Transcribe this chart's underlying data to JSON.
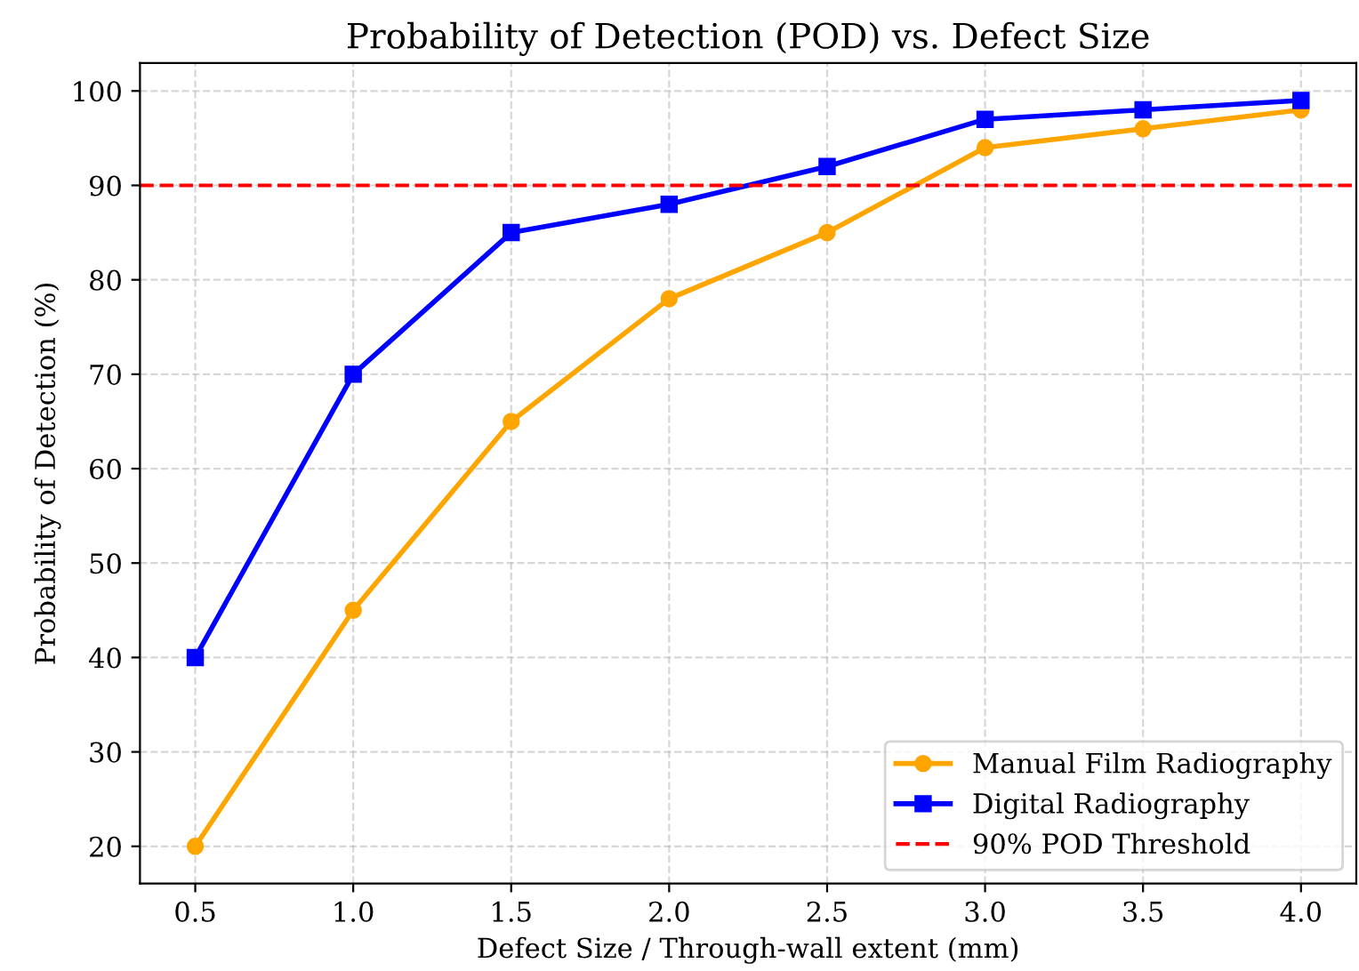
{
  "chart_data": {
    "type": "line",
    "title": "Probability of Detection (POD) vs. Defect Size",
    "xlabel": "Defect Size / Through-wall extent (mm)",
    "ylabel": "Probability of Detection (%)",
    "x": [
      0.5,
      1.0,
      1.5,
      2.0,
      2.5,
      3.0,
      3.5,
      4.0
    ],
    "series": [
      {
        "name": "Manual Film Radiography",
        "color": "#ffa500",
        "marker": "circle",
        "values": [
          20,
          45,
          65,
          78,
          85,
          94,
          96,
          98
        ]
      },
      {
        "name": "Digital Radiography",
        "color": "#0000ff",
        "marker": "square",
        "values": [
          40,
          70,
          85,
          88,
          92,
          97,
          98,
          99
        ]
      }
    ],
    "ref_lines": [
      {
        "axis": "y",
        "value": 90,
        "label": "90% POD Threshold",
        "color": "#ff0000",
        "line_style": "dashed"
      }
    ],
    "xlim": [
      0.325,
      4.175
    ],
    "xticks": [
      {
        "value": 0.5,
        "label": "0.5"
      },
      {
        "value": 1.0,
        "label": "1.0"
      },
      {
        "value": 1.5,
        "label": "1.5"
      },
      {
        "value": 2.0,
        "label": "2.0"
      },
      {
        "value": 2.5,
        "label": "2.5"
      },
      {
        "value": 3.0,
        "label": "3.0"
      },
      {
        "value": 3.5,
        "label": "3.5"
      },
      {
        "value": 4.0,
        "label": "4.0"
      }
    ],
    "ylim": [
      16.05,
      102.95
    ],
    "yticks": [
      20,
      30,
      40,
      50,
      60,
      70,
      80,
      90,
      100
    ],
    "grid": true,
    "legend": "bottom right",
    "line_style": "solid"
  }
}
